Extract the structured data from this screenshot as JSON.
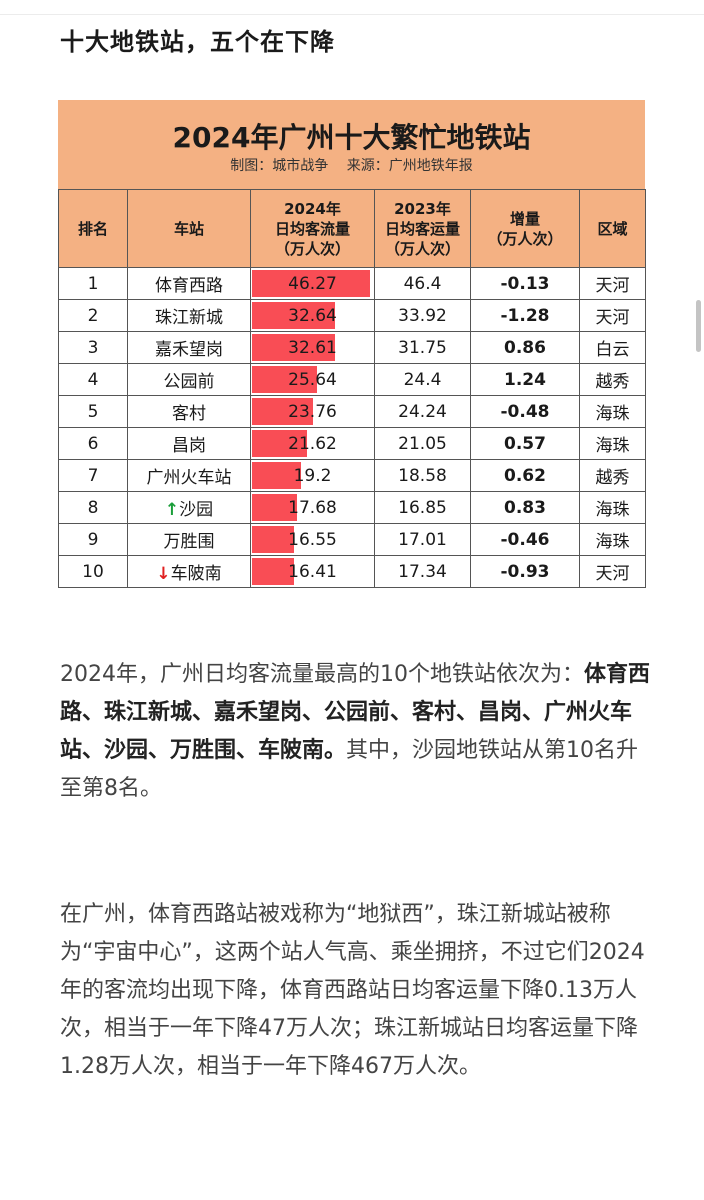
{
  "heading": "十大地铁站，五个在下降",
  "card": {
    "title": "2024年广州十大繁忙地铁站",
    "credit_left": "制图：城市战争",
    "credit_right": "来源：广州地铁年报",
    "headers": {
      "rank": "排名",
      "station": "车站",
      "y2024_a": "2024年",
      "y2024_b": "日均客流量",
      "y2024_c": "（万人次）",
      "y2023_a": "2023年",
      "y2023_b": "日均客运量",
      "y2023_c": "（万人次）",
      "diff_a": "增量",
      "diff_b": "（万人次）",
      "district": "区域"
    }
  },
  "colors": {
    "header_bg": "#f4b183",
    "bar": "#f94d55",
    "up": "#1a9e3a",
    "down": "#e02020"
  },
  "chart_data": {
    "type": "table",
    "title": "2024年广州十大繁忙地铁站",
    "bar_max": 46.27,
    "rows": [
      {
        "rank": "1",
        "station": "体育西路",
        "marker": "",
        "v2024": 46.27,
        "v2024_text": "46.27",
        "v2023": "46.4",
        "diff": "-0.13",
        "district": "天河"
      },
      {
        "rank": "2",
        "station": "珠江新城",
        "marker": "",
        "v2024": 32.64,
        "v2024_text": "32.64",
        "v2023": "33.92",
        "diff": "-1.28",
        "district": "天河"
      },
      {
        "rank": "3",
        "station": "嘉禾望岗",
        "marker": "",
        "v2024": 32.61,
        "v2024_text": "32.61",
        "v2023": "31.75",
        "diff": "0.86",
        "district": "白云"
      },
      {
        "rank": "4",
        "station": "公园前",
        "marker": "",
        "v2024": 25.64,
        "v2024_text": "25.64",
        "v2023": "24.4",
        "diff": "1.24",
        "district": "越秀"
      },
      {
        "rank": "5",
        "station": "客村",
        "marker": "",
        "v2024": 23.76,
        "v2024_text": "23.76",
        "v2023": "24.24",
        "diff": "-0.48",
        "district": "海珠"
      },
      {
        "rank": "6",
        "station": "昌岗",
        "marker": "",
        "v2024": 21.62,
        "v2024_text": "21.62",
        "v2023": "21.05",
        "diff": "0.57",
        "district": "海珠"
      },
      {
        "rank": "7",
        "station": "广州火车站",
        "marker": "",
        "v2024": 19.2,
        "v2024_text": "19.2",
        "v2023": "18.58",
        "diff": "0.62",
        "district": "越秀"
      },
      {
        "rank": "8",
        "station": "沙园",
        "marker": "↑",
        "v2024": 17.68,
        "v2024_text": "17.68",
        "v2023": "16.85",
        "diff": "0.83",
        "district": "海珠"
      },
      {
        "rank": "9",
        "station": "万胜围",
        "marker": "",
        "v2024": 16.55,
        "v2024_text": "16.55",
        "v2023": "17.01",
        "diff": "-0.46",
        "district": "海珠"
      },
      {
        "rank": "10",
        "station": "车陂南",
        "marker": "↓",
        "v2024": 16.41,
        "v2024_text": "16.41",
        "v2023": "17.34",
        "diff": "-0.93",
        "district": "天河"
      }
    ]
  },
  "para1": {
    "intro": "2024年，广州日均客流量最高的10个地铁站依次为：",
    "bold": "体育西路、珠江新城、嘉禾望岗、公园前、客村、昌岗、广州火车站、沙园、万胜围、车陂南。",
    "tail": "其中，沙园地铁站从第10名升至第8名。"
  },
  "para2": {
    "text": "在广州，体育西路站被戏称为“地狱西”，珠江新城站被称为“宇宙中心”，这两个站人气高、乘坐拥挤，不过它们2024年的客流均出现下降，体育西路站日均客运量下降0.13万人次，相当于一年下降47万人次；珠江新城站日均客运量下降1.28万人次，相当于一年下降467万人次。"
  }
}
